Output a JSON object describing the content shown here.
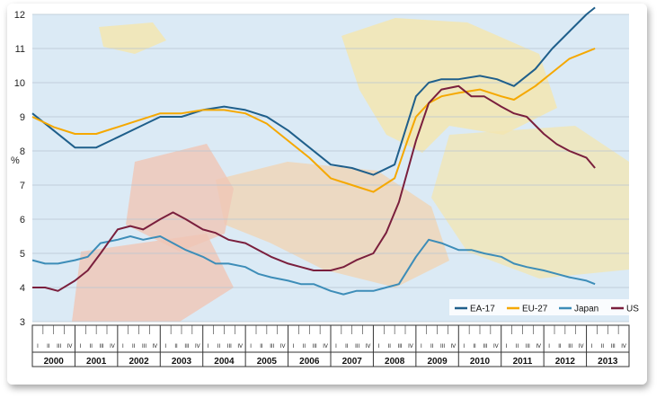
{
  "chart_data": {
    "type": "line",
    "title": "",
    "xlabel": "",
    "ylabel": "%",
    "ylim": [
      3,
      12
    ],
    "yticks": [
      3,
      4,
      5,
      6,
      7,
      8,
      9,
      10,
      11,
      12
    ],
    "grid": true,
    "legend_position": "bottom-right",
    "years": [
      "2000",
      "2001",
      "2002",
      "2003",
      "2004",
      "2005",
      "2006",
      "2007",
      "2008",
      "2009",
      "2010",
      "2011",
      "2012",
      "2013"
    ],
    "quarter_labels": [
      "I",
      "II",
      "III",
      "IV"
    ],
    "x_unit": "year",
    "series": [
      {
        "name": "EA-17",
        "color": "#1f5f8b",
        "x": [
          2000.0,
          2000.5,
          2001.0,
          2001.5,
          2002.0,
          2002.5,
          2003.0,
          2003.5,
          2004.0,
          2004.5,
          2005.0,
          2005.5,
          2006.0,
          2006.5,
          2007.0,
          2007.5,
          2008.0,
          2008.5,
          2008.8,
          2009.0,
          2009.3,
          2009.6,
          2010.0,
          2010.5,
          2010.9,
          2011.3,
          2011.8,
          2012.2,
          2012.6,
          2013.0,
          2013.2
        ],
        "y": [
          9.1,
          8.6,
          8.1,
          8.1,
          8.4,
          8.7,
          9.0,
          9.0,
          9.2,
          9.3,
          9.2,
          9.0,
          8.6,
          8.1,
          7.6,
          7.5,
          7.3,
          7.6,
          8.8,
          9.6,
          10.0,
          10.1,
          10.1,
          10.2,
          10.1,
          9.9,
          10.4,
          11.0,
          11.5,
          12.0,
          12.2
        ]
      },
      {
        "name": "EU-27",
        "color": "#f5a800",
        "x": [
          2000.0,
          2000.5,
          2001.0,
          2001.5,
          2002.0,
          2002.5,
          2003.0,
          2003.5,
          2004.0,
          2004.5,
          2005.0,
          2005.5,
          2006.0,
          2006.5,
          2007.0,
          2007.5,
          2008.0,
          2008.5,
          2008.8,
          2009.0,
          2009.3,
          2009.6,
          2010.0,
          2010.5,
          2011.0,
          2011.3,
          2011.8,
          2012.2,
          2012.6,
          2013.0,
          2013.2
        ],
        "y": [
          9.0,
          8.7,
          8.5,
          8.5,
          8.7,
          8.9,
          9.1,
          9.1,
          9.2,
          9.2,
          9.1,
          8.8,
          8.3,
          7.8,
          7.2,
          7.0,
          6.8,
          7.2,
          8.3,
          9.0,
          9.4,
          9.6,
          9.7,
          9.8,
          9.6,
          9.5,
          9.9,
          10.3,
          10.7,
          10.9,
          11.0
        ]
      },
      {
        "name": "Japan",
        "color": "#3d8db8",
        "x": [
          2000.0,
          2000.3,
          2000.6,
          2001.0,
          2001.3,
          2001.6,
          2002.0,
          2002.3,
          2002.6,
          2003.0,
          2003.3,
          2003.6,
          2004.0,
          2004.3,
          2004.6,
          2005.0,
          2005.3,
          2005.6,
          2006.0,
          2006.3,
          2006.6,
          2007.0,
          2007.3,
          2007.6,
          2008.0,
          2008.3,
          2008.6,
          2009.0,
          2009.3,
          2009.6,
          2010.0,
          2010.3,
          2010.6,
          2011.0,
          2011.3,
          2011.6,
          2012.0,
          2012.3,
          2012.6,
          2013.0,
          2013.2
        ],
        "y": [
          4.8,
          4.7,
          4.7,
          4.8,
          4.9,
          5.3,
          5.4,
          5.5,
          5.4,
          5.5,
          5.3,
          5.1,
          4.9,
          4.7,
          4.7,
          4.6,
          4.4,
          4.3,
          4.2,
          4.1,
          4.1,
          3.9,
          3.8,
          3.9,
          3.9,
          4.0,
          4.1,
          4.9,
          5.4,
          5.3,
          5.1,
          5.1,
          5.0,
          4.9,
          4.7,
          4.6,
          4.5,
          4.4,
          4.3,
          4.2,
          4.1
        ]
      },
      {
        "name": "US",
        "color": "#7a1f3d",
        "x": [
          2000.0,
          2000.3,
          2000.6,
          2001.0,
          2001.3,
          2001.6,
          2002.0,
          2002.3,
          2002.6,
          2003.0,
          2003.3,
          2003.6,
          2004.0,
          2004.3,
          2004.6,
          2005.0,
          2005.3,
          2005.6,
          2006.0,
          2006.3,
          2006.6,
          2007.0,
          2007.3,
          2007.6,
          2008.0,
          2008.3,
          2008.6,
          2009.0,
          2009.3,
          2009.6,
          2010.0,
          2010.3,
          2010.6,
          2011.0,
          2011.3,
          2011.6,
          2012.0,
          2012.3,
          2012.6,
          2013.0,
          2013.2
        ],
        "y": [
          4.0,
          4.0,
          3.9,
          4.2,
          4.5,
          5.0,
          5.7,
          5.8,
          5.7,
          6.0,
          6.2,
          6.0,
          5.7,
          5.6,
          5.4,
          5.3,
          5.1,
          4.9,
          4.7,
          4.6,
          4.5,
          4.5,
          4.6,
          4.8,
          5.0,
          5.6,
          6.5,
          8.3,
          9.4,
          9.8,
          9.9,
          9.6,
          9.6,
          9.3,
          9.1,
          9.0,
          8.5,
          8.2,
          8.0,
          7.8,
          7.5
        ]
      }
    ]
  }
}
